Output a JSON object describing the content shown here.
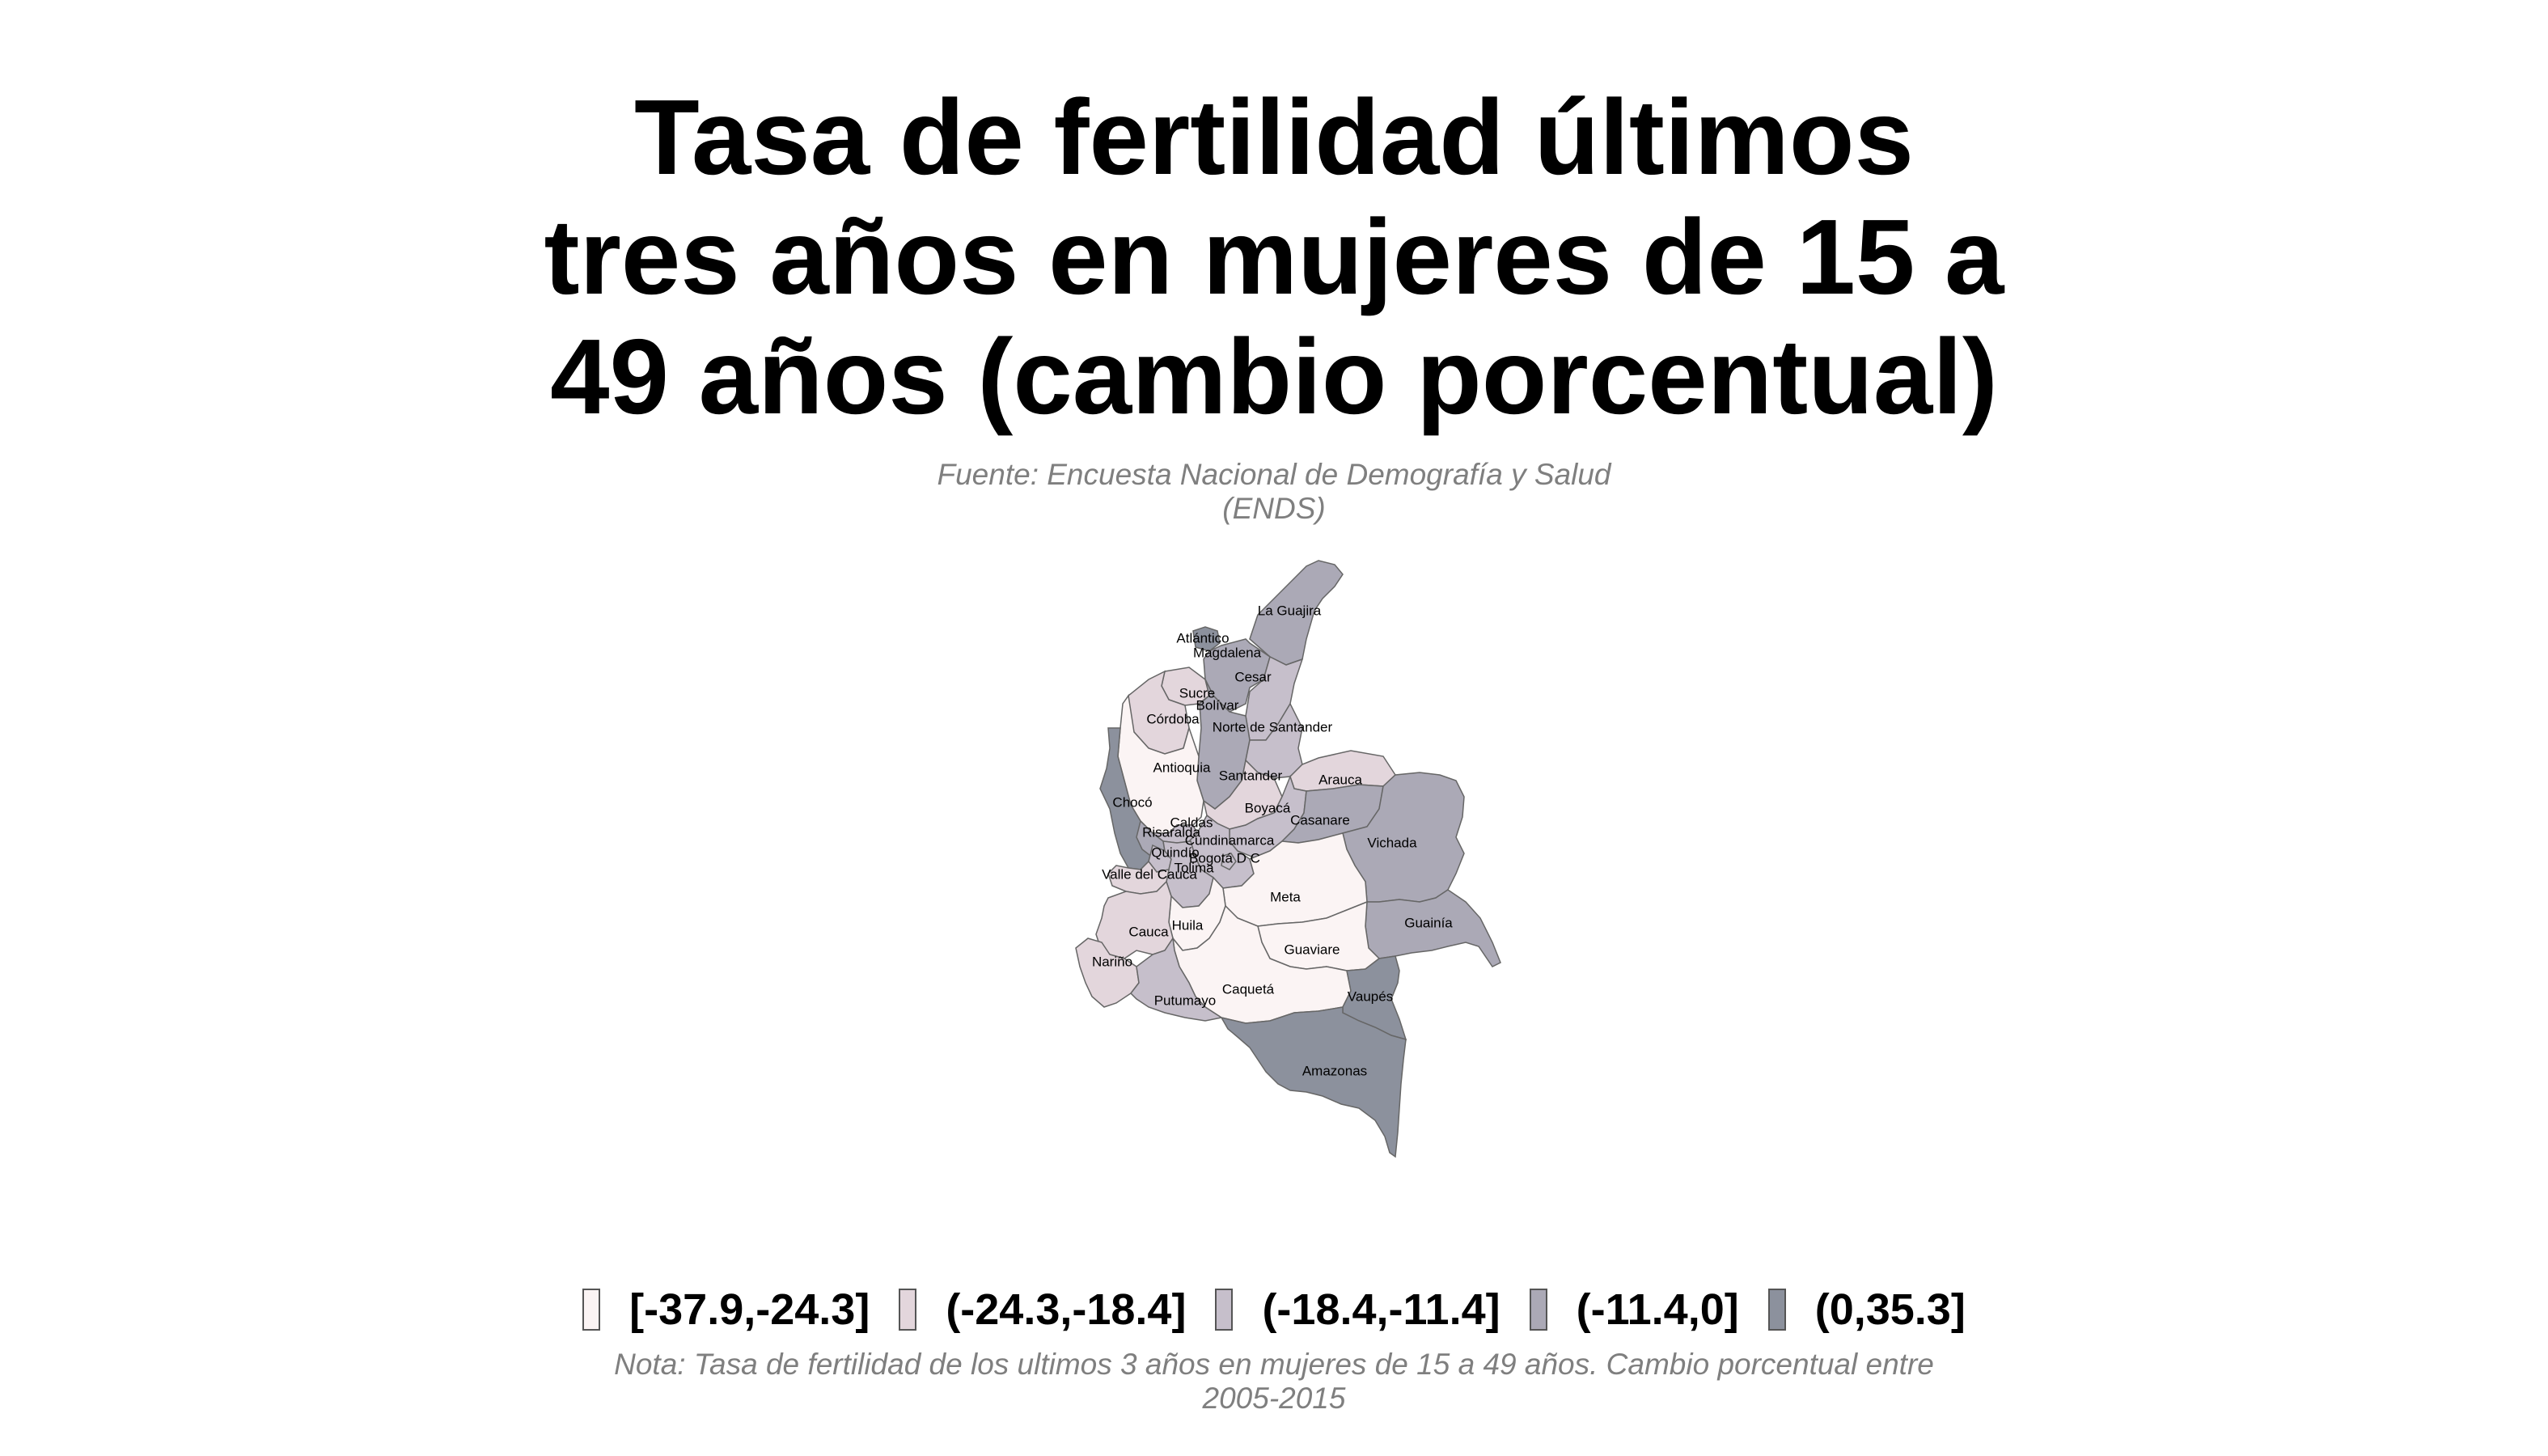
{
  "title_lines": [
    "Tasa de fertilidad últimos",
    "tres años en mujeres de 15 a",
    "49 años (cambio porcentual)"
  ],
  "subtitle_lines": [
    "Fuente: Encuesta Nacional de Demografía y Salud",
    "(ENDS)"
  ],
  "note_lines": [
    "Nota: Tasa de fertilidad de los ultimos 3 años en mujeres de 15 a 49 años. Cambio porcentual entre",
    "2005-2015"
  ],
  "legend": [
    {
      "label": "[-37.9,-24.3]",
      "color": "#fbf4f4"
    },
    {
      "label": "(-24.3,-18.4]",
      "color": "#e3d6dc"
    },
    {
      "label": "(-18.4,-11.4]",
      "color": "#c6bfcb"
    },
    {
      "label": "(-11.4,0]",
      "color": "#aba9b6"
    },
    {
      "label": "(0,35.3]",
      "color": "#8c919d"
    }
  ],
  "departments": [
    {
      "name": "La Guajira",
      "class": 3
    },
    {
      "name": "Atlántico",
      "class": 4
    },
    {
      "name": "Magdalena",
      "class": 3
    },
    {
      "name": "Cesar",
      "class": 2
    },
    {
      "name": "Sucre",
      "class": 1
    },
    {
      "name": "Bolívar",
      "class": 3
    },
    {
      "name": "Córdoba",
      "class": 1
    },
    {
      "name": "Norte de Santander",
      "class": 2
    },
    {
      "name": "Antioquia",
      "class": 0
    },
    {
      "name": "Santander",
      "class": 1
    },
    {
      "name": "Arauca",
      "class": 1
    },
    {
      "name": "Boyacá",
      "class": 2
    },
    {
      "name": "Chocó",
      "class": 4
    },
    {
      "name": "Caldas",
      "class": 2
    },
    {
      "name": "Risaralda",
      "class": 3
    },
    {
      "name": "Casanare",
      "class": 3
    },
    {
      "name": "Cundinamarca",
      "class": 2
    },
    {
      "name": "Vichada",
      "class": 3
    },
    {
      "name": "Quindío",
      "class": 2
    },
    {
      "name": "Bogotá D C",
      "class": 2
    },
    {
      "name": "Tolima",
      "class": 2
    },
    {
      "name": "Valle del Cauca",
      "class": 1
    },
    {
      "name": "Meta",
      "class": 0
    },
    {
      "name": "Huila",
      "class": 0
    },
    {
      "name": "Cauca",
      "class": 1
    },
    {
      "name": "Guainía",
      "class": 3
    },
    {
      "name": "Guaviare",
      "class": 0
    },
    {
      "name": "Nariño",
      "class": 1
    },
    {
      "name": "Caquetá",
      "class": 0
    },
    {
      "name": "Vaupés",
      "class": 4
    },
    {
      "name": "Putumayo",
      "class": 2
    },
    {
      "name": "Amazonas",
      "class": 4
    }
  ]
}
